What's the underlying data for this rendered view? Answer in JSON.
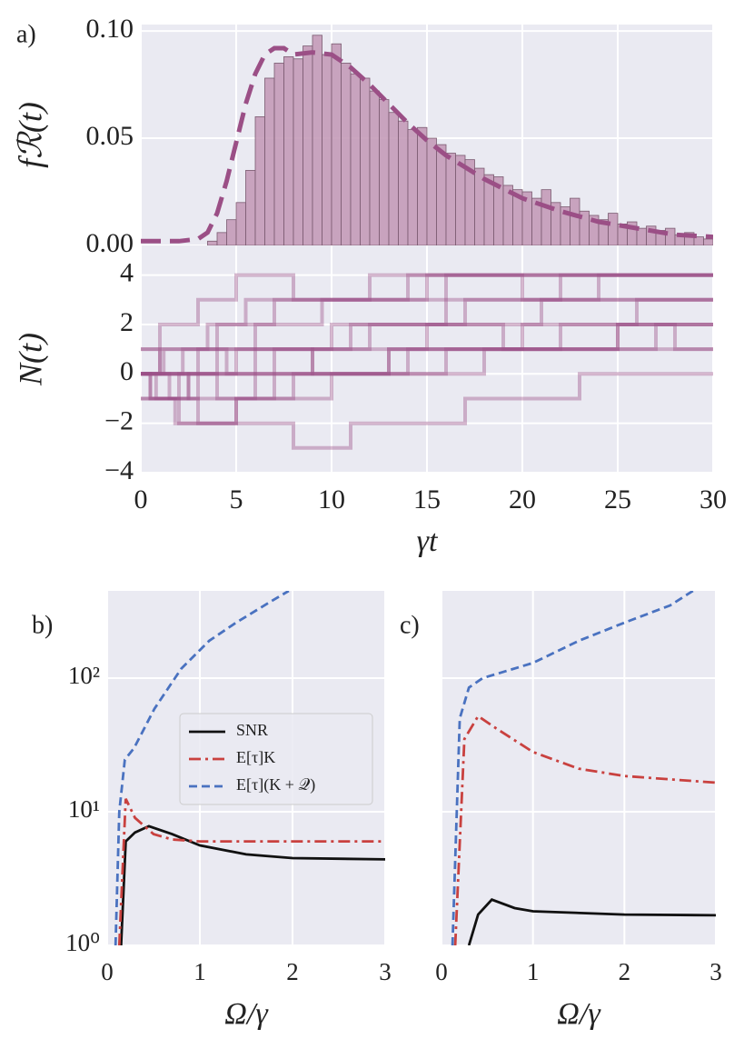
{
  "chart_data": [
    {
      "type": "histogram",
      "panel_label": "a)",
      "ylabel": "fℛ(t)",
      "bins": [
        3.5,
        4,
        4.5,
        5,
        5.5,
        6,
        6.5,
        7,
        7.5,
        8,
        8.5,
        9,
        9.5,
        10,
        10.5,
        11,
        11.5,
        12,
        12.5,
        13,
        13.5,
        14,
        14.5,
        15,
        15.5,
        16,
        16.5,
        17,
        17.5,
        18,
        18.5,
        19,
        19.5,
        20,
        20.5,
        21,
        21.5,
        22,
        22.5,
        23,
        23.5,
        24,
        24.5,
        25,
        25.5,
        26,
        26.5,
        27,
        27.5,
        28,
        28.5,
        29,
        29.5,
        30
      ],
      "values": [
        0.002,
        0.006,
        0.012,
        0.02,
        0.035,
        0.06,
        0.078,
        0.085,
        0.088,
        0.087,
        0.093,
        0.098,
        0.089,
        0.094,
        0.085,
        0.08,
        0.078,
        0.072,
        0.068,
        0.062,
        0.058,
        0.054,
        0.055,
        0.05,
        0.047,
        0.043,
        0.042,
        0.04,
        0.036,
        0.033,
        0.032,
        0.028,
        0.026,
        0.025,
        0.022,
        0.026,
        0.02,
        0.018,
        0.022,
        0.016,
        0.014,
        0.012,
        0.015,
        0.01,
        0.011,
        0.008,
        0.009,
        0.007,
        0.008,
        0.005,
        0.006,
        0.004,
        0.003
      ],
      "color": "#c49bb8",
      "fit": {
        "color": "#9b4f86",
        "dash": "dashed",
        "x": [
          0,
          2,
          3,
          3.5,
          4,
          4.5,
          5,
          5.5,
          6,
          6.5,
          7,
          7.5,
          8,
          9,
          10,
          11,
          12,
          13,
          14,
          15,
          16,
          18,
          20,
          22,
          24,
          26,
          28,
          30
        ],
        "values": [
          0.002,
          0.002,
          0.003,
          0.006,
          0.015,
          0.03,
          0.048,
          0.066,
          0.08,
          0.089,
          0.092,
          0.092,
          0.089,
          0.09,
          0.089,
          0.083,
          0.075,
          0.066,
          0.057,
          0.049,
          0.042,
          0.031,
          0.022,
          0.016,
          0.011,
          0.008,
          0.005,
          0.004
        ]
      },
      "xlim": [
        0,
        30
      ],
      "xticks": [
        0,
        5,
        10,
        15,
        20,
        25,
        30
      ],
      "show_xtick_labels": false,
      "ylim": [
        0,
        0.103
      ],
      "yticks": [
        {
          "value": 0,
          "label": "0.00"
        },
        {
          "value": 0.05,
          "label": "0.05"
        },
        {
          "value": 0.1,
          "label": "0.10"
        }
      ],
      "grid": true
    },
    {
      "type": "step",
      "ylabel": "N(t)",
      "xlabel": "γt",
      "color": "#9b4f86",
      "series": [
        {
          "x": [
            0,
            1.2,
            3.5,
            7,
            12
          ],
          "values": [
            0,
            1,
            2,
            3,
            4
          ]
        },
        {
          "x": [
            0,
            2,
            5,
            11,
            17,
            24
          ],
          "values": [
            -1,
            0,
            1,
            2,
            3,
            4
          ]
        },
        {
          "x": [
            0,
            0.8,
            2.5,
            6,
            10,
            16,
            22
          ],
          "values": [
            0,
            -1,
            0,
            1,
            2,
            3,
            4
          ]
        },
        {
          "x": [
            0,
            3,
            4.5,
            9,
            15,
            21
          ],
          "values": [
            0,
            1,
            0,
            1,
            2,
            3
          ]
        },
        {
          "x": [
            0,
            1,
            4,
            6,
            13,
            27
          ],
          "values": [
            1,
            0,
            -1,
            0,
            1,
            2
          ]
        },
        {
          "x": [
            0,
            0.5,
            2,
            5,
            8,
            14,
            20,
            26
          ],
          "values": [
            0,
            -1,
            -2,
            -1,
            0,
            1,
            2,
            3
          ]
        },
        {
          "x": [
            0,
            2.2,
            6,
            9.5,
            16
          ],
          "values": [
            0,
            1,
            2,
            3,
            4
          ]
        },
        {
          "x": [
            0,
            1.5,
            3,
            7,
            12,
            19,
            25
          ],
          "values": [
            0,
            -1,
            0,
            1,
            2,
            1,
            2
          ]
        },
        {
          "x": [
            0,
            0.5,
            3,
            8,
            11,
            17,
            23
          ],
          "values": [
            0,
            -1,
            -2,
            -3,
            -2,
            -1,
            0
          ]
        },
        {
          "x": [
            0,
            1,
            4,
            5.5,
            14,
            20
          ],
          "values": [
            0,
            1,
            2,
            3,
            4,
            3
          ]
        },
        {
          "x": [
            0,
            2.5,
            7,
            13,
            22,
            28
          ],
          "values": [
            0,
            -1,
            0,
            1,
            2,
            1
          ]
        },
        {
          "x": [
            0,
            1.8,
            5,
            10,
            18
          ],
          "values": [
            -1,
            -2,
            -1,
            0,
            1
          ]
        },
        {
          "x": [
            0,
            1,
            3,
            5,
            8,
            15
          ],
          "values": [
            1,
            2,
            3,
            4,
            3,
            4
          ]
        },
        {
          "x": [
            0,
            4,
            9,
            16,
            25
          ],
          "values": [
            0,
            1,
            0,
            1,
            2
          ]
        }
      ],
      "xlim": [
        0,
        30
      ],
      "xticks": [
        0,
        5,
        10,
        15,
        20,
        25,
        30
      ],
      "ylim": [
        -4,
        5.2
      ],
      "yticks": [
        {
          "value": -4,
          "label": "−4"
        },
        {
          "value": -2,
          "label": "−2"
        },
        0,
        2,
        4
      ],
      "grid": true
    },
    {
      "type": "line",
      "panel_label": "b)",
      "xlabel": "Ω/γ",
      "log_y": true,
      "legend": "center",
      "series": [
        {
          "name": "SNR",
          "color": "#111111",
          "dash": "solid",
          "x": [
            0.15,
            0.2,
            0.3,
            0.45,
            0.7,
            1.0,
            1.5,
            2.0,
            3.0
          ],
          "values": [
            1,
            6,
            7,
            7.8,
            6.8,
            5.6,
            4.8,
            4.5,
            4.4
          ]
        },
        {
          "name": "E[τ]K",
          "color": "#c9413f",
          "dash": "dashdot",
          "x": [
            0.13,
            0.2,
            0.3,
            0.5,
            0.7,
            1.0,
            3.0
          ],
          "values": [
            1,
            12.5,
            9,
            6.8,
            6.2,
            6.0,
            6.0
          ]
        },
        {
          "name": "E[τ](K + 𝒬)",
          "color": "#4a72c0",
          "dash": "dashed",
          "x": [
            0.09,
            0.13,
            0.19,
            0.29,
            0.51,
            0.8,
            1.1,
            1.39,
            1.78,
            1.96
          ],
          "values": [
            1,
            10,
            24.5,
            30,
            59,
            118,
            190,
            260,
            380,
            450
          ]
        }
      ],
      "xlim": [
        0,
        3
      ],
      "xticks": [
        0,
        1,
        2,
        3
      ],
      "ylim": [
        1,
        450
      ],
      "yticks": [
        {
          "value": 1,
          "label": "10⁰"
        },
        {
          "value": 10,
          "label": "10¹"
        },
        {
          "value": 100,
          "label": "10²"
        }
      ],
      "grid": true
    },
    {
      "type": "line",
      "panel_label": "c)",
      "xlabel": "Ω/γ",
      "log_y": true,
      "series": [
        {
          "color": "#111111",
          "dash": "solid",
          "x": [
            0.3,
            0.4,
            0.55,
            0.8,
            1.0,
            2.0,
            3.0
          ],
          "values": [
            1,
            1.7,
            2.2,
            1.9,
            1.8,
            1.7,
            1.68
          ]
        },
        {
          "color": "#c9413f",
          "dash": "dashdot",
          "x": [
            0.15,
            0.25,
            0.4,
            0.6,
            1.0,
            1.5,
            2.0,
            3.0
          ],
          "values": [
            1,
            35,
            52,
            42,
            28,
            21,
            18.5,
            16.5
          ]
        },
        {
          "color": "#4a72c0",
          "dash": "dashed",
          "x": [
            0.12,
            0.2,
            0.3,
            0.45,
            1.0,
            1.5,
            2.0,
            2.5,
            2.75
          ],
          "values": [
            1,
            50,
            85,
            100,
            130,
            190,
            260,
            350,
            450
          ]
        }
      ],
      "xlim": [
        0,
        3
      ],
      "xticks": [
        0,
        1,
        2,
        3
      ],
      "ylim": [
        1,
        450
      ],
      "yticks": [
        1,
        10,
        100
      ],
      "show_ytick_labels": false,
      "grid": true
    }
  ]
}
